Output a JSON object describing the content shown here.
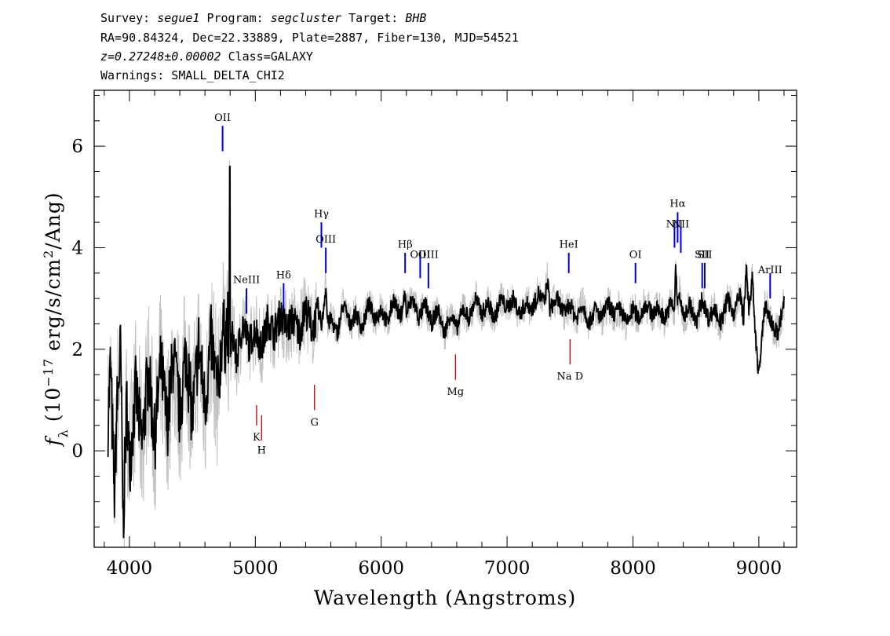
{
  "header": {
    "survey_label": "Survey:",
    "survey": "segue1",
    "program_label": "Program:",
    "program": "segcluster",
    "target_label": "Target:",
    "target": "BHB",
    "line2": "RA=90.84324, Dec=22.33889, Plate=2887, Fiber=130, MJD=54521",
    "redshift": "z=0.27248±0.00002",
    "class": "Class=GALAXY",
    "warnings": "Warnings: SMALL_DELTA_CHI2"
  },
  "chart_data": {
    "type": "line",
    "xlabel": "Wavelength (Angstroms)",
    "ylabel": "f_λ (10^-17 erg/s/cm^2/Ang)",
    "xlim": [
      3720,
      9300
    ],
    "ylim": [
      -1.9,
      7.1
    ],
    "xticks": [
      4000,
      5000,
      6000,
      7000,
      8000,
      9000
    ],
    "yticks": [
      0,
      2,
      4,
      6
    ],
    "colors": {
      "flux": "#000000",
      "noise": "#c0c0c0",
      "emission": "#0000c8",
      "absorption": "#c80000"
    },
    "series": [
      {
        "x": [
          3830,
          3850,
          3880,
          3900,
          3930,
          3950,
          3980,
          4000,
          4050,
          4100,
          4150,
          4200,
          4250,
          4300,
          4350,
          4400,
          4450,
          4500,
          4550,
          4600,
          4650,
          4700,
          4740,
          4760,
          4780,
          4790,
          4797,
          4800,
          4805,
          4820,
          4850,
          4900,
          4950,
          5000,
          5050,
          5100,
          5150,
          5200,
          5250,
          5300,
          5350,
          5400,
          5450,
          5500,
          5530,
          5550,
          5560,
          5570,
          5580,
          5600,
          5650,
          5700,
          5750,
          5800,
          5850,
          5900,
          5950,
          6000,
          6050,
          6100,
          6150,
          6190,
          6200,
          6250,
          6300,
          6350,
          6400,
          6450,
          6500,
          6550,
          6600,
          6650,
          6700,
          6750,
          6800,
          6850,
          6900,
          6950,
          7000,
          7050,
          7100,
          7150,
          7200,
          7250,
          7300,
          7320,
          7340,
          7400,
          7450,
          7500,
          7550,
          7600,
          7650,
          7700,
          7750,
          7800,
          7850,
          7900,
          7950,
          8000,
          8050,
          8100,
          8150,
          8200,
          8250,
          8300,
          8330,
          8340,
          8350,
          8370,
          8400,
          8450,
          8500,
          8550,
          8600,
          8650,
          8700,
          8750,
          8800,
          8850,
          8880,
          8900,
          8920,
          8950,
          8970,
          9000,
          9050,
          9100,
          9150,
          9200
        ],
        "values": [
          0.6,
          1.7,
          -0.9,
          0.8,
          2.0,
          -1.4,
          1.0,
          -0.3,
          1.2,
          0.1,
          1.6,
          0.2,
          1.7,
          0.5,
          1.9,
          0.7,
          2.0,
          0.6,
          2.1,
          0.9,
          2.2,
          1.1,
          2.4,
          2.2,
          2.6,
          2.0,
          5.6,
          2.2,
          2.0,
          2.3,
          1.8,
          2.5,
          2.1,
          2.4,
          2.0,
          2.6,
          2.3,
          2.7,
          2.4,
          2.6,
          2.3,
          2.8,
          2.4,
          2.7,
          2.5,
          3.0,
          3.3,
          2.7,
          2.5,
          2.6,
          2.3,
          2.9,
          2.5,
          2.7,
          2.4,
          2.9,
          2.6,
          2.8,
          2.5,
          3.0,
          2.6,
          3.1,
          2.7,
          3.0,
          2.6,
          2.9,
          2.5,
          2.8,
          2.3,
          2.7,
          2.4,
          2.8,
          2.6,
          3.0,
          2.7,
          2.9,
          2.6,
          3.0,
          2.8,
          3.0,
          2.7,
          2.9,
          2.8,
          3.1,
          2.9,
          3.4,
          2.8,
          3.0,
          2.7,
          2.9,
          2.6,
          2.9,
          2.5,
          2.8,
          2.6,
          2.9,
          2.7,
          2.8,
          2.5,
          2.8,
          2.6,
          2.9,
          2.7,
          2.8,
          2.6,
          2.9,
          2.8,
          3.7,
          2.9,
          3.1,
          2.6,
          2.9,
          2.5,
          3.0,
          2.6,
          2.8,
          2.5,
          3.0,
          2.7,
          3.1,
          2.6,
          3.6,
          2.8,
          3.4,
          2.3,
          1.5,
          2.9,
          2.5,
          2.3,
          2.9
        ]
      }
    ],
    "lines": [
      {
        "label": "OII",
        "lambda": 4740,
        "kind": "emission",
        "lo": 5.9,
        "hi": 6.4,
        "label_y": 6.5
      },
      {
        "label": "NeIII",
        "lambda": 4930,
        "kind": "emission",
        "lo": 2.7,
        "hi": 3.2,
        "label_y": 3.3
      },
      {
        "label": "Hδ",
        "lambda": 5225,
        "kind": "emission",
        "lo": 2.8,
        "hi": 3.3,
        "label_y": 3.4
      },
      {
        "label": "Hγ",
        "lambda": 5525,
        "kind": "emission",
        "lo": 4.0,
        "hi": 4.5,
        "label_y": 4.6
      },
      {
        "label": "OIII",
        "lambda": 5560,
        "kind": "emission",
        "lo": 3.5,
        "hi": 4.0,
        "label_y": 4.1
      },
      {
        "label": "Hβ",
        "lambda": 6190,
        "kind": "emission",
        "lo": 3.5,
        "hi": 3.9,
        "label_y": 4.0
      },
      {
        "label": "OIII",
        "lambda": 6310,
        "kind": "emission",
        "lo": 3.4,
        "hi": 3.9,
        "label_y": 3.8
      },
      {
        "label": "OIII",
        "lambda": 6375,
        "kind": "emission",
        "lo": 3.2,
        "hi": 3.7,
        "label_y": 3.8
      },
      {
        "label": "HeI",
        "lambda": 7490,
        "kind": "emission",
        "lo": 3.5,
        "hi": 3.9,
        "label_y": 4.0
      },
      {
        "label": "OI",
        "lambda": 8020,
        "kind": "emission",
        "lo": 3.3,
        "hi": 3.7,
        "label_y": 3.8
      },
      {
        "label": "NII",
        "lambda": 8330,
        "kind": "emission",
        "lo": 4.0,
        "hi": 4.5,
        "label_y": 4.4
      },
      {
        "label": "Hα",
        "lambda": 8355,
        "kind": "emission",
        "lo": 4.1,
        "hi": 4.7,
        "label_y": 4.8
      },
      {
        "label": "NII",
        "lambda": 8380,
        "kind": "emission",
        "lo": 3.9,
        "hi": 4.4,
        "label_y": 4.4
      },
      {
        "label": "SII",
        "lambda": 8550,
        "kind": "emission",
        "lo": 3.2,
        "hi": 3.7,
        "label_y": 3.8
      },
      {
        "label": "SII",
        "lambda": 8570,
        "kind": "emission",
        "lo": 3.2,
        "hi": 3.7,
        "label_y": 3.8
      },
      {
        "label": "ArIII",
        "lambda": 9090,
        "kind": "emission",
        "lo": 3.0,
        "hi": 3.5,
        "label_y": 3.5
      },
      {
        "label": "K",
        "lambda": 5010,
        "kind": "absorption",
        "lo": 0.5,
        "hi": 0.9,
        "label_y": 0.2
      },
      {
        "label": "H",
        "lambda": 5050,
        "kind": "absorption",
        "lo": 0.2,
        "hi": 0.7,
        "label_y": -0.05
      },
      {
        "label": "G",
        "lambda": 5470,
        "kind": "absorption",
        "lo": 0.8,
        "hi": 1.3,
        "label_y": 0.5
      },
      {
        "label": "Mg",
        "lambda": 6590,
        "kind": "absorption",
        "lo": 1.4,
        "hi": 1.9,
        "label_y": 1.1
      },
      {
        "label": "Na D",
        "lambda": 7500,
        "kind": "absorption",
        "lo": 1.7,
        "hi": 2.2,
        "label_y": 1.4
      }
    ]
  }
}
